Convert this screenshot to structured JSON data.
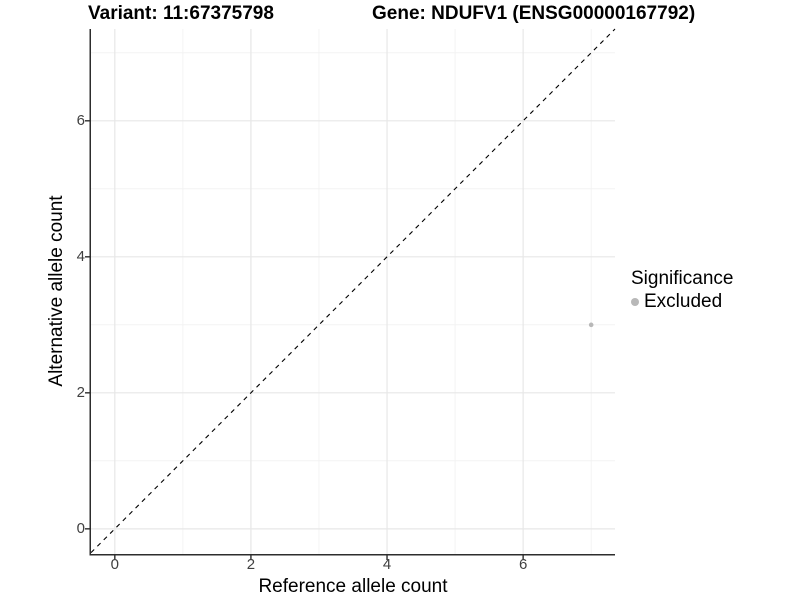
{
  "title": {
    "variant": "Variant: 11:67375798",
    "gene": "Gene: NDUFV1 (ENSG00000167792)"
  },
  "axes": {
    "x_label": "Reference allele count",
    "y_label": "Alternative allele count"
  },
  "legend": {
    "title": "Significance",
    "items": [
      {
        "label": "Excluded",
        "color": "#b8b8b8",
        "shape": "circle"
      }
    ]
  },
  "chart_data": {
    "type": "scatter",
    "title": "Variant: 11:67375798   Gene: NDUFV1 (ENSG00000167792)",
    "xlabel": "Reference allele count",
    "ylabel": "Alternative allele count",
    "xlim": [
      -0.35,
      7.35
    ],
    "ylim": [
      -0.37,
      7.35
    ],
    "x_ticks": [
      0,
      2,
      4,
      6
    ],
    "y_ticks": [
      0,
      2,
      4,
      6
    ],
    "x_minor_gridlines": [
      1,
      3,
      5,
      7
    ],
    "y_minor_gridlines": [
      1,
      3,
      5,
      7
    ],
    "grid": "major-and-minor",
    "legend_position": "right",
    "series": [
      {
        "name": "Excluded",
        "color": "#b8b8b8",
        "marker": "circle",
        "points": [
          {
            "x": 7,
            "y": 3
          }
        ]
      }
    ],
    "reference_line": {
      "kind": "identity y=x",
      "style": "dashed",
      "color": "#000000"
    }
  },
  "style": {
    "background": "#ffffff",
    "grid_major_color": "#e7e7e7",
    "grid_minor_color": "#f1f1f1",
    "axis_line_color": "#2d2d2d",
    "tick_color": "#2d2d2d",
    "tick_label_color": "#404040",
    "point_color": "#b8b8b8",
    "dashed_line_color": "#000000"
  }
}
